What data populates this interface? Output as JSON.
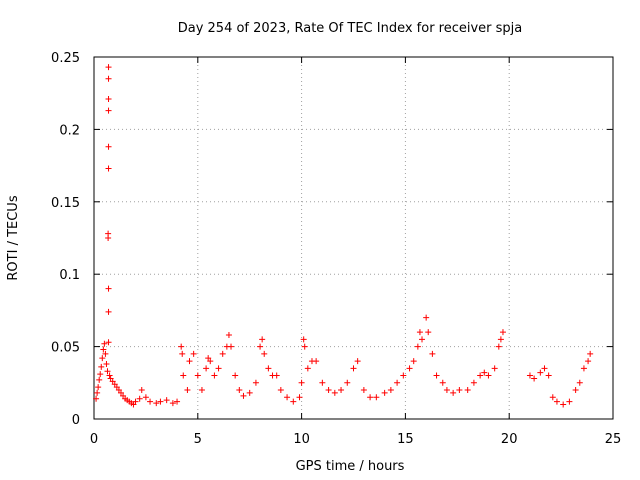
{
  "chart_data": {
    "type": "scatter",
    "title": "Day 254 of 2023, Rate Of TEC Index for receiver spja",
    "xlabel": "GPS time / hours",
    "ylabel": "ROTI / TECUs",
    "xlim": [
      0,
      25
    ],
    "ylim": [
      0,
      0.25
    ],
    "x_ticks": [
      "0",
      "5",
      "10",
      "15",
      "20",
      "25"
    ],
    "y_ticks": [
      "0",
      "0.05",
      "0.1",
      "0.15",
      "0.2",
      "0.25"
    ],
    "grid": true,
    "marker": "plus",
    "color": "#ff0000",
    "series": [
      {
        "points": [
          [
            0.7,
            0.243
          ],
          [
            0.7,
            0.235
          ],
          [
            0.7,
            0.221
          ],
          [
            0.7,
            0.213
          ],
          [
            0.7,
            0.188
          ],
          [
            0.7,
            0.173
          ],
          [
            0.68,
            0.128
          ],
          [
            0.68,
            0.125
          ],
          [
            0.7,
            0.09
          ],
          [
            0.7,
            0.074
          ],
          [
            0.7,
            0.053
          ],
          [
            0.1,
            0.014
          ],
          [
            0.15,
            0.018
          ],
          [
            0.2,
            0.022
          ],
          [
            0.25,
            0.027
          ],
          [
            0.3,
            0.031
          ],
          [
            0.35,
            0.036
          ],
          [
            0.4,
            0.042
          ],
          [
            0.45,
            0.048
          ],
          [
            0.5,
            0.052
          ],
          [
            0.55,
            0.045
          ],
          [
            0.6,
            0.038
          ],
          [
            0.65,
            0.033
          ],
          [
            0.75,
            0.03
          ],
          [
            0.8,
            0.028
          ],
          [
            0.9,
            0.026
          ],
          [
            1.0,
            0.024
          ],
          [
            1.1,
            0.022
          ],
          [
            1.2,
            0.02
          ],
          [
            1.3,
            0.018
          ],
          [
            1.4,
            0.016
          ],
          [
            1.5,
            0.014
          ],
          [
            1.6,
            0.013
          ],
          [
            1.7,
            0.012
          ],
          [
            1.8,
            0.011
          ],
          [
            1.9,
            0.01
          ],
          [
            2.0,
            0.012
          ],
          [
            2.2,
            0.014
          ],
          [
            2.3,
            0.02
          ],
          [
            2.5,
            0.015
          ],
          [
            2.7,
            0.012
          ],
          [
            3.0,
            0.011
          ],
          [
            3.2,
            0.012
          ],
          [
            3.5,
            0.013
          ],
          [
            3.8,
            0.011
          ],
          [
            4.0,
            0.012
          ],
          [
            4.2,
            0.05
          ],
          [
            4.25,
            0.045
          ],
          [
            4.3,
            0.03
          ],
          [
            4.5,
            0.02
          ],
          [
            4.6,
            0.04
          ],
          [
            4.8,
            0.045
          ],
          [
            5.0,
            0.03
          ],
          [
            5.2,
            0.02
          ],
          [
            5.4,
            0.035
          ],
          [
            5.5,
            0.042
          ],
          [
            5.6,
            0.04
          ],
          [
            5.8,
            0.03
          ],
          [
            6.0,
            0.035
          ],
          [
            6.2,
            0.045
          ],
          [
            6.4,
            0.05
          ],
          [
            6.5,
            0.058
          ],
          [
            6.6,
            0.05
          ],
          [
            6.8,
            0.03
          ],
          [
            7.0,
            0.02
          ],
          [
            7.2,
            0.016
          ],
          [
            7.5,
            0.018
          ],
          [
            7.8,
            0.025
          ],
          [
            8.0,
            0.05
          ],
          [
            8.1,
            0.055
          ],
          [
            8.2,
            0.045
          ],
          [
            8.4,
            0.035
          ],
          [
            8.6,
            0.03
          ],
          [
            8.8,
            0.03
          ],
          [
            9.0,
            0.02
          ],
          [
            9.3,
            0.015
          ],
          [
            9.6,
            0.012
          ],
          [
            9.9,
            0.015
          ],
          [
            10.0,
            0.025
          ],
          [
            10.1,
            0.055
          ],
          [
            10.15,
            0.05
          ],
          [
            10.3,
            0.035
          ],
          [
            10.5,
            0.04
          ],
          [
            10.7,
            0.04
          ],
          [
            11.0,
            0.025
          ],
          [
            11.3,
            0.02
          ],
          [
            11.6,
            0.018
          ],
          [
            11.9,
            0.02
          ],
          [
            12.2,
            0.025
          ],
          [
            12.5,
            0.035
          ],
          [
            12.7,
            0.04
          ],
          [
            13.0,
            0.02
          ],
          [
            13.3,
            0.015
          ],
          [
            13.6,
            0.015
          ],
          [
            14.0,
            0.018
          ],
          [
            14.3,
            0.02
          ],
          [
            14.6,
            0.025
          ],
          [
            14.9,
            0.03
          ],
          [
            15.2,
            0.035
          ],
          [
            15.4,
            0.04
          ],
          [
            15.6,
            0.05
          ],
          [
            15.7,
            0.06
          ],
          [
            15.8,
            0.055
          ],
          [
            16.0,
            0.07
          ],
          [
            16.1,
            0.06
          ],
          [
            16.3,
            0.045
          ],
          [
            16.5,
            0.03
          ],
          [
            16.8,
            0.025
          ],
          [
            17.0,
            0.02
          ],
          [
            17.3,
            0.018
          ],
          [
            17.6,
            0.02
          ],
          [
            18.0,
            0.02
          ],
          [
            18.3,
            0.025
          ],
          [
            18.6,
            0.03
          ],
          [
            18.8,
            0.032
          ],
          [
            19.0,
            0.03
          ],
          [
            19.3,
            0.035
          ],
          [
            19.5,
            0.05
          ],
          [
            19.6,
            0.055
          ],
          [
            19.7,
            0.06
          ],
          [
            21.0,
            0.03
          ],
          [
            21.2,
            0.028
          ],
          [
            21.5,
            0.032
          ],
          [
            21.7,
            0.035
          ],
          [
            21.9,
            0.03
          ],
          [
            22.1,
            0.015
          ],
          [
            22.3,
            0.012
          ],
          [
            22.6,
            0.01
          ],
          [
            22.9,
            0.012
          ],
          [
            23.2,
            0.02
          ],
          [
            23.4,
            0.025
          ],
          [
            23.6,
            0.035
          ],
          [
            23.8,
            0.04
          ],
          [
            23.9,
            0.045
          ]
        ]
      }
    ]
  }
}
